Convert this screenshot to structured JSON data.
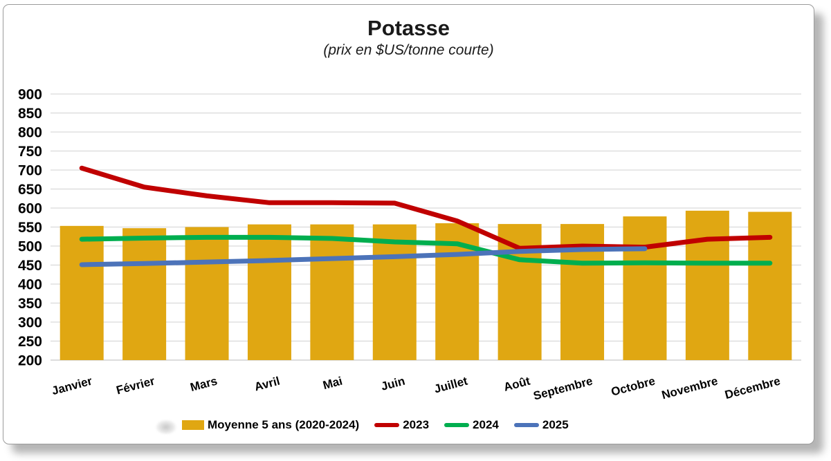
{
  "chart_data": {
    "type": "combo-bar-line",
    "title": "Potasse",
    "subtitle": "(prix en $US/tonne courte)",
    "categories": [
      "Janvier",
      "Février",
      "Mars",
      "Avril",
      "Mai",
      "Juin",
      "Juillet",
      "Août",
      "Septembre",
      "Octobre",
      "Novembre",
      "Décembre"
    ],
    "ylim": [
      200,
      900
    ],
    "ytick_step": 50,
    "grid": true,
    "legend_position": "bottom",
    "bar_series": {
      "name": "Moyenne 5 ans (2020-2024)",
      "color": "#E0A712",
      "values": [
        553,
        547,
        550,
        557,
        557,
        557,
        560,
        558,
        558,
        578,
        593,
        590
      ]
    },
    "line_series": [
      {
        "name": "2023",
        "color": "#C00000",
        "values": [
          705,
          655,
          632,
          614,
          614,
          613,
          566,
          494,
          500,
          497,
          518,
          523
        ]
      },
      {
        "name": "2024",
        "color": "#00AE4F",
        "values": [
          518,
          521,
          523,
          523,
          520,
          511,
          506,
          464,
          455,
          456,
          455,
          455
        ]
      },
      {
        "name": "2025",
        "color": "#4C73B9",
        "values": [
          451,
          454,
          458,
          462,
          467,
          472,
          478,
          486,
          491,
          493
        ]
      }
    ],
    "colors": {
      "grid": "#D9D9D9",
      "axis_line": "#C8C8C8",
      "axis_text": "#000000"
    }
  }
}
